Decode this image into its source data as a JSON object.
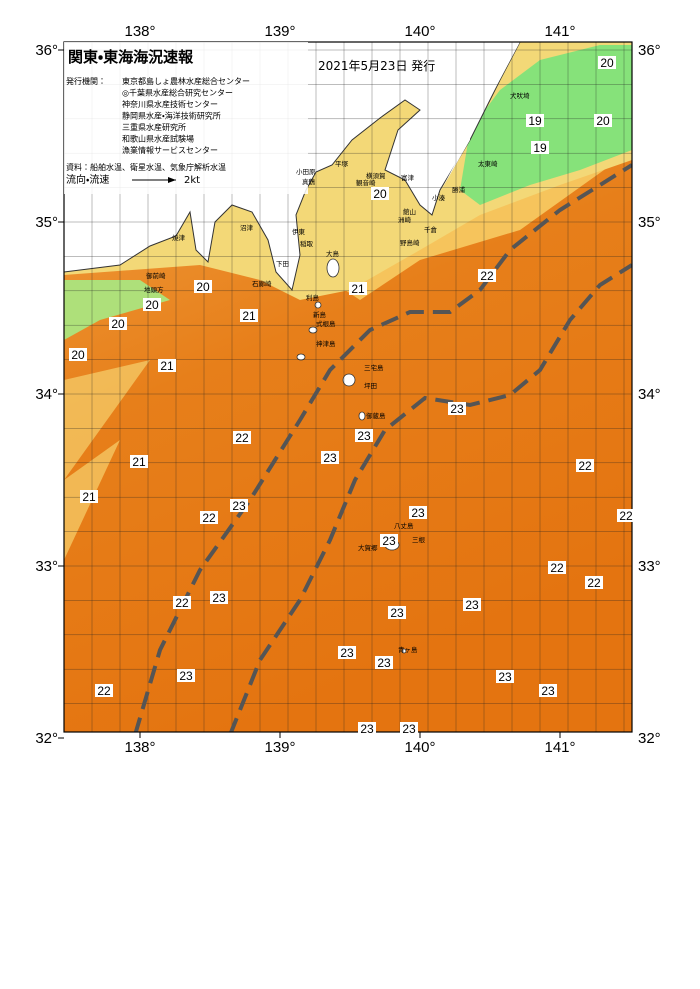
{
  "header": {
    "title": "関東・東海海況速報",
    "date": "2021年5月23日 発行"
  },
  "issuers": {
    "label": "発行機関：",
    "names": [
      "東京都島しょ農林水産総合センター",
      "◎千葉県水産総合研究センター",
      "神奈川県水産技術センター",
      "静岡県水産・海洋技術研究所",
      "三重県水産研究所",
      "和歌山県水産試験場",
      "漁業情報サービスセンター"
    ]
  },
  "sources": "資料：船舶水温、衛星水温、気象庁解析水温",
  "legend": {
    "label": "流向・流速",
    "speed": "2kt"
  },
  "lon_ticks": [
    {
      "value": 138,
      "label": "138°"
    },
    {
      "value": 139,
      "label": "139°"
    },
    {
      "value": 140,
      "label": "140°"
    },
    {
      "value": 141,
      "label": "141°"
    }
  ],
  "lat_ticks": [
    {
      "value": 36,
      "label": "36°"
    },
    {
      "value": 35,
      "label": "35°"
    },
    {
      "value": 34,
      "label": "34°"
    },
    {
      "value": 33,
      "label": "33°"
    },
    {
      "value": 32,
      "label": "32°"
    }
  ],
  "temperature_labels": [
    20,
    19,
    20,
    19,
    20,
    22,
    21,
    20,
    20,
    20,
    21,
    20,
    21,
    23,
    22,
    23,
    23,
    22,
    21,
    21,
    23,
    22,
    23,
    22,
    23,
    22,
    22,
    22,
    23,
    23,
    23,
    23,
    23,
    23,
    23,
    22,
    23,
    23,
    23
  ],
  "places": [
    "犬吠埼",
    "太東崎",
    "勝浦",
    "小湊",
    "洲崎",
    "千倉",
    "館山",
    "野島崎",
    "富津",
    "横須賀",
    "観音崎",
    "平塚",
    "小田原",
    "真鶴",
    "伊東",
    "稲取",
    "下田",
    "石廊崎",
    "沼津",
    "焼津",
    "御前崎",
    "地頭方",
    "大島",
    "利島",
    "新島",
    "式根島",
    "神津島",
    "三宅島",
    "坪田",
    "御蔵島",
    "八丈島",
    "大賀郷",
    "三根",
    "青ヶ島"
  ]
}
